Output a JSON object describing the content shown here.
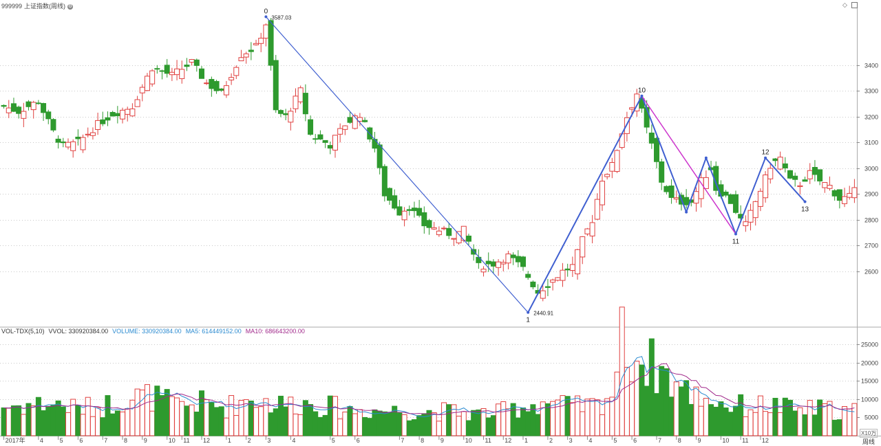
{
  "header": {
    "symbol": "999999",
    "name": "上证指数(周线)",
    "settings_icon": "gear-icon",
    "window_icons": [
      "diamond-icon",
      "restore-icon"
    ]
  },
  "volume_header": {
    "indicator": "VOL-TDX(5,10)",
    "vvol": "VVOL: 330920384.00",
    "volume": "VOLUME: 330920384.00",
    "ma5": "MA5: 614449152.00",
    "ma10": "MA10: 686643200.00",
    "unit": "X10万",
    "period_label": "周线"
  },
  "colors": {
    "up": "#e0403f",
    "down": "#2e9a2e",
    "wave": "#3f5fd0",
    "wave_alt": "#cc33cc",
    "ma5": "#2a8ad0",
    "ma10": "#a0288a",
    "grid": "#c8c8c8"
  },
  "chart_data": {
    "type": "candlestick",
    "price_axis": {
      "ticks": [
        2600,
        2700,
        2800,
        2900,
        3000,
        3100,
        3200,
        3300,
        3400
      ],
      "range": [
        2400,
        3620
      ]
    },
    "volume_axis": {
      "ticks": [
        5000,
        10000,
        15000,
        20000,
        25000
      ],
      "range": [
        0,
        27500
      ]
    },
    "time_labels": [
      {
        "i": 0,
        "label": "2017年"
      },
      {
        "i": 7,
        "label": "4"
      },
      {
        "i": 11,
        "label": "5"
      },
      {
        "i": 15,
        "label": "6"
      },
      {
        "i": 20,
        "label": "7"
      },
      {
        "i": 24,
        "label": "8"
      },
      {
        "i": 28,
        "label": "9"
      },
      {
        "i": 33,
        "label": "10"
      },
      {
        "i": 36,
        "label": "11"
      },
      {
        "i": 40,
        "label": "12"
      },
      {
        "i": 45,
        "label": "1"
      },
      {
        "i": 49,
        "label": "2"
      },
      {
        "i": 53,
        "label": "3"
      },
      {
        "i": 58,
        "label": "4"
      },
      {
        "i": 66,
        "label": "5"
      },
      {
        "i": 71,
        "label": "6"
      },
      {
        "i": 80,
        "label": "7"
      },
      {
        "i": 84,
        "label": "8"
      },
      {
        "i": 88,
        "label": "9"
      },
      {
        "i": 93,
        "label": "10"
      },
      {
        "i": 97,
        "label": "11"
      },
      {
        "i": 101,
        "label": "12"
      },
      {
        "i": 105,
        "label": "1"
      },
      {
        "i": 110,
        "label": "2"
      },
      {
        "i": 114,
        "label": "3"
      },
      {
        "i": 118,
        "label": "4"
      },
      {
        "i": 123,
        "label": "5"
      },
      {
        "i": 127,
        "label": "6"
      },
      {
        "i": 132,
        "label": "7"
      },
      {
        "i": 136,
        "label": "8"
      },
      {
        "i": 140,
        "label": "9"
      },
      {
        "i": 145,
        "label": "10"
      },
      {
        "i": 149,
        "label": "11"
      },
      {
        "i": 153,
        "label": "12"
      }
    ],
    "ohlc_keypoints": [
      [
        0,
        3240
      ],
      [
        3,
        3220
      ],
      [
        7,
        3260
      ],
      [
        10,
        3140
      ],
      [
        12,
        3085
      ],
      [
        15,
        3100
      ],
      [
        19,
        3170
      ],
      [
        22,
        3210
      ],
      [
        26,
        3240
      ],
      [
        30,
        3390
      ],
      [
        34,
        3360
      ],
      [
        38,
        3410
      ],
      [
        41,
        3330
      ],
      [
        44,
        3290
      ],
      [
        48,
        3440
      ],
      [
        51,
        3470
      ],
      [
        53,
        3560
      ],
      [
        55,
        3220
      ],
      [
        57,
        3200
      ],
      [
        60,
        3300
      ],
      [
        62,
        3130
      ],
      [
        66,
        3090
      ],
      [
        69,
        3170
      ],
      [
        72,
        3210
      ],
      [
        75,
        3080
      ],
      [
        77,
        2900
      ],
      [
        80,
        2830
      ],
      [
        82,
        2850
      ],
      [
        85,
        2780
      ],
      [
        88,
        2760
      ],
      [
        91,
        2740
      ],
      [
        93,
        2760
      ],
      [
        96,
        2620
      ],
      [
        99,
        2630
      ],
      [
        102,
        2660
      ],
      [
        105,
        2610
      ],
      [
        108,
        2520
      ],
      [
        110,
        2550
      ],
      [
        113,
        2600
      ],
      [
        115,
        2620
      ],
      [
        117,
        2720
      ],
      [
        119,
        2800
      ],
      [
        121,
        2960
      ],
      [
        123,
        3010
      ],
      [
        125,
        3140
      ],
      [
        126,
        3200
      ],
      [
        128,
        3290
      ],
      [
        130,
        3150
      ],
      [
        131,
        3090
      ],
      [
        133,
        2950
      ],
      [
        135,
        2880
      ],
      [
        137,
        2870
      ],
      [
        139,
        2870
      ],
      [
        141,
        2950
      ],
      [
        143,
        3000
      ],
      [
        144,
        2920
      ],
      [
        146,
        2890
      ],
      [
        147,
        2870
      ],
      [
        149,
        2800
      ],
      [
        150,
        2780
      ],
      [
        152,
        2870
      ],
      [
        154,
        2960
      ],
      [
        155,
        3010
      ],
      [
        157,
        3040
      ],
      [
        159,
        2950
      ],
      [
        161,
        2940
      ],
      [
        163,
        2980
      ],
      [
        165,
        2950
      ],
      [
        167,
        2930
      ],
      [
        169,
        2880
      ],
      [
        171,
        2890
      ],
      [
        172,
        2910
      ]
    ],
    "volume_keypoints": [
      [
        0,
        8000
      ],
      [
        5,
        8500
      ],
      [
        10,
        8800
      ],
      [
        15,
        7500
      ],
      [
        20,
        8000
      ],
      [
        25,
        10500
      ],
      [
        30,
        10800
      ],
      [
        35,
        8200
      ],
      [
        40,
        9000
      ],
      [
        45,
        7800
      ],
      [
        50,
        10500
      ],
      [
        55,
        8500
      ],
      [
        60,
        9000
      ],
      [
        65,
        8200
      ],
      [
        70,
        7000
      ],
      [
        75,
        7000
      ],
      [
        80,
        6800
      ],
      [
        85,
        6500
      ],
      [
        90,
        6700
      ],
      [
        95,
        6000
      ],
      [
        100,
        6400
      ],
      [
        105,
        8000
      ],
      [
        110,
        9500
      ],
      [
        115,
        7800
      ],
      [
        120,
        8300
      ],
      [
        123,
        12000
      ],
      [
        125,
        26000
      ],
      [
        127,
        22500
      ],
      [
        130,
        20000
      ],
      [
        133,
        18000
      ],
      [
        135,
        15000
      ],
      [
        138,
        12000
      ],
      [
        142,
        10500
      ],
      [
        146,
        8500
      ],
      [
        150,
        8000
      ],
      [
        155,
        8400
      ],
      [
        160,
        7000
      ],
      [
        165,
        7300
      ],
      [
        170,
        6800
      ],
      [
        172,
        6900
      ]
    ],
    "wave_points": [
      {
        "i": 53,
        "price": 3587.03,
        "label": "0",
        "value_label": "3587.03"
      },
      {
        "i": 106,
        "price": 2440.91,
        "label": "1",
        "value_label": "2440.91"
      },
      {
        "i": 129,
        "price": 3280,
        "label": "10"
      },
      {
        "i": 138,
        "price": 2830,
        "label": ""
      },
      {
        "i": 142,
        "price": 3040,
        "label": ""
      },
      {
        "i": 148,
        "price": 2745,
        "label": "11"
      },
      {
        "i": 154,
        "price": 3040,
        "label": "12"
      },
      {
        "i": 162,
        "price": 2870,
        "label": "13"
      }
    ]
  }
}
